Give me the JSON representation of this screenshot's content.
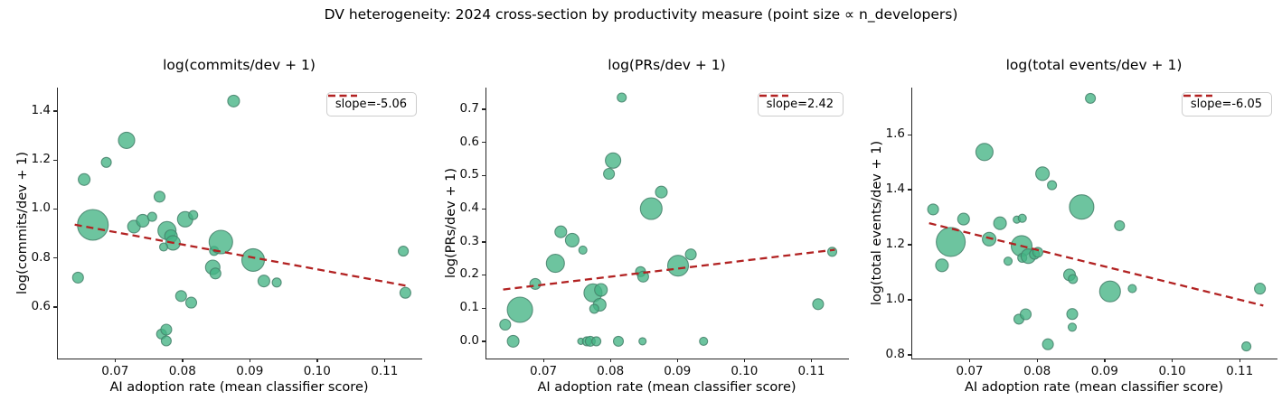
{
  "figure": {
    "suptitle": "DV heterogeneity: 2024 cross-section by productivity measure (point size ∝ n_developers)",
    "xlabel": "AI adoption rate (mean classifier score)",
    "colors": {
      "point_fill": "#44b384",
      "point_edge": "#44806a",
      "trend": "#b22222",
      "spine": "#262626",
      "legend_border": "#cccccc",
      "background": "#ffffff"
    }
  },
  "chart_data": [
    {
      "type": "scatter",
      "title": "log(commits/dev + 1)",
      "ylabel": "log(commits/dev + 1)",
      "xlabel": "AI adoption rate (mean classifier score)",
      "legend_label": "slope=-5.06",
      "slope": -5.06,
      "legend_position": "upper right",
      "grid": false,
      "xlim": [
        0.0615,
        0.1156
      ],
      "ylim": [
        0.39,
        1.495
      ],
      "xticks": [
        "0.07",
        "0.08",
        "0.09",
        "0.10",
        "0.11"
      ],
      "yticks": [
        "0.6",
        "0.8",
        "1.0",
        "1.2",
        "1.4"
      ],
      "trend": {
        "x1": 0.064,
        "y1": 0.936,
        "x2": 0.1135,
        "y2": 0.6855
      },
      "points": [
        [
          0.0645,
          0.72,
          6
        ],
        [
          0.0654,
          1.12,
          6.5
        ],
        [
          0.0667,
          0.935,
          17
        ],
        [
          0.0687,
          1.19,
          5.5
        ],
        [
          0.0717,
          1.28,
          9
        ],
        [
          0.0728,
          0.928,
          7
        ],
        [
          0.0741,
          0.952,
          7
        ],
        [
          0.0755,
          0.968,
          5
        ],
        [
          0.0766,
          1.05,
          6
        ],
        [
          0.0769,
          0.49,
          5.5
        ],
        [
          0.0776,
          0.508,
          6
        ],
        [
          0.0776,
          0.462,
          5.5
        ],
        [
          0.0777,
          0.912,
          10
        ],
        [
          0.0783,
          0.889,
          7
        ],
        [
          0.0786,
          0.862,
          8
        ],
        [
          0.0772,
          0.845,
          4.5
        ],
        [
          0.0798,
          0.645,
          6
        ],
        [
          0.0804,
          0.958,
          8.5
        ],
        [
          0.0813,
          0.618,
          6
        ],
        [
          0.0816,
          0.975,
          5
        ],
        [
          0.0845,
          0.762,
          8
        ],
        [
          0.0849,
          0.737,
          6
        ],
        [
          0.0847,
          0.829,
          5
        ],
        [
          0.0857,
          0.865,
          13
        ],
        [
          0.0876,
          1.44,
          6.5
        ],
        [
          0.0905,
          0.792,
          12.5
        ],
        [
          0.0921,
          0.706,
          6.5
        ],
        [
          0.094,
          0.7,
          5
        ],
        [
          0.1128,
          0.828,
          5.5
        ],
        [
          0.1131,
          0.658,
          6
        ]
      ]
    },
    {
      "type": "scatter",
      "title": "log(PRs/dev + 1)",
      "ylabel": "log(PRs/dev + 1)",
      "xlabel": "AI adoption rate (mean classifier score)",
      "legend_label": "slope=2.42",
      "slope": 2.42,
      "legend_position": "upper right",
      "grid": false,
      "xlim": [
        0.0615,
        0.1156
      ],
      "ylim": [
        -0.052,
        0.765
      ],
      "xticks": [
        "0.07",
        "0.08",
        "0.09",
        "0.10",
        "0.11"
      ],
      "yticks": [
        "0.0",
        "0.1",
        "0.2",
        "0.3",
        "0.4",
        "0.5",
        "0.6",
        "0.7"
      ],
      "trend": {
        "x1": 0.064,
        "y1": 0.156,
        "x2": 0.1135,
        "y2": 0.276
      },
      "points": [
        [
          0.0643,
          0.05,
          6
        ],
        [
          0.0655,
          0.0,
          6.5
        ],
        [
          0.0665,
          0.095,
          14
        ],
        [
          0.0688,
          0.173,
          6
        ],
        [
          0.0718,
          0.235,
          10
        ],
        [
          0.0726,
          0.33,
          6.5
        ],
        [
          0.0743,
          0.305,
          7.5
        ],
        [
          0.0759,
          0.275,
          4.5
        ],
        [
          0.0756,
          0.0,
          3.5
        ],
        [
          0.0765,
          0.0,
          5
        ],
        [
          0.077,
          0.0,
          5.5
        ],
        [
          0.0779,
          0.0,
          5
        ],
        [
          0.0774,
          0.146,
          10
        ],
        [
          0.0786,
          0.155,
          7
        ],
        [
          0.0784,
          0.11,
          7
        ],
        [
          0.0776,
          0.098,
          5
        ],
        [
          0.0812,
          0.0,
          5.5
        ],
        [
          0.0798,
          0.505,
          6
        ],
        [
          0.0804,
          0.545,
          8.5
        ],
        [
          0.0817,
          0.735,
          5
        ],
        [
          0.0845,
          0.21,
          5.5
        ],
        [
          0.0849,
          0.195,
          6
        ],
        [
          0.0848,
          0.0,
          4
        ],
        [
          0.0861,
          0.4,
          12
        ],
        [
          0.0876,
          0.45,
          6.5
        ],
        [
          0.0901,
          0.228,
          11.5
        ],
        [
          0.092,
          0.262,
          6
        ],
        [
          0.0939,
          0.0,
          4.5
        ],
        [
          0.111,
          0.112,
          6
        ],
        [
          0.1131,
          0.27,
          5
        ]
      ]
    },
    {
      "type": "scatter",
      "title": "log(total events/dev + 1)",
      "ylabel": "log(total events/dev + 1)",
      "xlabel": "AI adoption rate (mean classifier score)",
      "legend_label": "slope=-6.05",
      "slope": -6.05,
      "legend_position": "upper right",
      "grid": false,
      "xlim": [
        0.0615,
        0.1156
      ],
      "ylim": [
        0.786,
        1.771
      ],
      "xticks": [
        "0.07",
        "0.08",
        "0.09",
        "0.10",
        "0.11"
      ],
      "yticks": [
        "0.8",
        "1.0",
        "1.2",
        "1.4",
        "1.6"
      ],
      "trend": {
        "x1": 0.064,
        "y1": 1.278,
        "x2": 0.1135,
        "y2": 0.9785
      },
      "points": [
        [
          0.0646,
          1.328,
          6
        ],
        [
          0.0659,
          1.125,
          7
        ],
        [
          0.0672,
          1.21,
          16
        ],
        [
          0.0691,
          1.293,
          6.5
        ],
        [
          0.0722,
          1.537,
          9.5
        ],
        [
          0.0729,
          1.22,
          7.5
        ],
        [
          0.0745,
          1.278,
          7
        ],
        [
          0.0757,
          1.14,
          4.5
        ],
        [
          0.077,
          1.291,
          4
        ],
        [
          0.0778,
          1.296,
          4.5
        ],
        [
          0.0777,
          1.195,
          11.5
        ],
        [
          0.0773,
          0.929,
          5.5
        ],
        [
          0.0783,
          0.947,
          6
        ],
        [
          0.0778,
          1.152,
          5
        ],
        [
          0.0787,
          1.158,
          8
        ],
        [
          0.0796,
          1.165,
          5.5
        ],
        [
          0.0801,
          1.172,
          5.5
        ],
        [
          0.0808,
          1.458,
          7.5
        ],
        [
          0.0816,
          0.838,
          6
        ],
        [
          0.0822,
          1.416,
          5
        ],
        [
          0.0848,
          1.09,
          6.5
        ],
        [
          0.0853,
          1.075,
          5
        ],
        [
          0.0852,
          0.948,
          6
        ],
        [
          0.0852,
          0.9,
          4.5
        ],
        [
          0.0866,
          1.337,
          13.5
        ],
        [
          0.0879,
          1.732,
          5.5
        ],
        [
          0.0908,
          1.03,
          11.5
        ],
        [
          0.0922,
          1.269,
          5.5
        ],
        [
          0.0941,
          1.04,
          4.5
        ],
        [
          0.111,
          0.83,
          5
        ],
        [
          0.113,
          1.04,
          6
        ]
      ]
    }
  ]
}
